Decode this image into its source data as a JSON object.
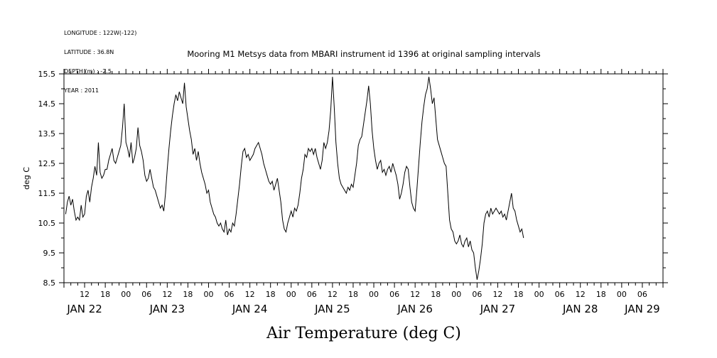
{
  "meta_lines": [
    "LONGITUDE : 122W(-122)",
    "LATITUDE : 36.8N",
    "DEPTH (m) : -2.5",
    "YEAR : 2011"
  ],
  "chart_data": {
    "type": "line",
    "title": "Mooring M1 Metsys data from MBARI instrument id 1396 at original sampling intervals",
    "ylabel": "deg C",
    "xlabel": "Air Temperature (deg C)",
    "ylim": [
      8.5,
      15.5
    ],
    "y_ticks": [
      "15.5",
      "14.5",
      "13.5",
      "12.5",
      "11.5",
      "10.5",
      "9.5",
      "8.5"
    ],
    "xlim_hours": [
      0,
      174
    ],
    "x_hour_ticks": [
      {
        "h": 6,
        "label": "12"
      },
      {
        "h": 12,
        "label": "18"
      },
      {
        "h": 18,
        "label": "00"
      },
      {
        "h": 24,
        "label": "06"
      },
      {
        "h": 30,
        "label": "12"
      },
      {
        "h": 36,
        "label": "18"
      },
      {
        "h": 42,
        "label": "00"
      },
      {
        "h": 48,
        "label": "06"
      },
      {
        "h": 54,
        "label": "12"
      },
      {
        "h": 60,
        "label": "18"
      },
      {
        "h": 66,
        "label": "00"
      },
      {
        "h": 72,
        "label": "06"
      },
      {
        "h": 78,
        "label": "12"
      },
      {
        "h": 84,
        "label": "18"
      },
      {
        "h": 90,
        "label": "00"
      },
      {
        "h": 96,
        "label": "06"
      },
      {
        "h": 102,
        "label": "12"
      },
      {
        "h": 108,
        "label": "18"
      },
      {
        "h": 114,
        "label": "00"
      },
      {
        "h": 120,
        "label": "06"
      },
      {
        "h": 126,
        "label": "12"
      },
      {
        "h": 132,
        "label": "18"
      },
      {
        "h": 138,
        "label": "00"
      },
      {
        "h": 144,
        "label": "06"
      },
      {
        "h": 150,
        "label": "12"
      },
      {
        "h": 156,
        "label": "18"
      },
      {
        "h": 162,
        "label": "00"
      },
      {
        "h": 168,
        "label": "06"
      }
    ],
    "x_day_labels": [
      {
        "h": 6,
        "label": "JAN 22"
      },
      {
        "h": 30,
        "label": "JAN 23"
      },
      {
        "h": 54,
        "label": "JAN 24"
      },
      {
        "h": 78,
        "label": "JAN 25"
      },
      {
        "h": 102,
        "label": "JAN 26"
      },
      {
        "h": 126,
        "label": "JAN 27"
      },
      {
        "h": 150,
        "label": "JAN 28"
      },
      {
        "h": 168,
        "label": "JAN 29"
      }
    ],
    "series": [
      {
        "points": [
          [
            0.5,
            10.8
          ],
          [
            1,
            11.2
          ],
          [
            1.5,
            11.4
          ],
          [
            2,
            11.1
          ],
          [
            2.5,
            11.3
          ],
          [
            3,
            10.9
          ],
          [
            3.5,
            10.6
          ],
          [
            4,
            10.7
          ],
          [
            4.5,
            10.6
          ],
          [
            5,
            11.1
          ],
          [
            5.5,
            10.7
          ],
          [
            6,
            10.8
          ],
          [
            6.5,
            11.4
          ],
          [
            7,
            11.6
          ],
          [
            7.5,
            11.2
          ],
          [
            8,
            11.7
          ],
          [
            8.5,
            12.0
          ],
          [
            9,
            12.4
          ],
          [
            9.5,
            12.1
          ],
          [
            10,
            13.2
          ],
          [
            10.5,
            12.2
          ],
          [
            11,
            12.0
          ],
          [
            11.5,
            12.1
          ],
          [
            12,
            12.3
          ],
          [
            12.5,
            12.3
          ],
          [
            13,
            12.6
          ],
          [
            13.5,
            12.8
          ],
          [
            14,
            13.0
          ],
          [
            14.5,
            12.6
          ],
          [
            15,
            12.5
          ],
          [
            15.5,
            12.7
          ],
          [
            16,
            12.9
          ],
          [
            16.5,
            13.1
          ],
          [
            17,
            13.7
          ],
          [
            17.5,
            14.5
          ],
          [
            18,
            13.2
          ],
          [
            18.5,
            13.0
          ],
          [
            19,
            12.7
          ],
          [
            19.5,
            13.2
          ],
          [
            20,
            12.5
          ],
          [
            20.5,
            12.7
          ],
          [
            21,
            13.0
          ],
          [
            21.5,
            13.7
          ],
          [
            22,
            13.1
          ],
          [
            22.5,
            12.9
          ],
          [
            23,
            12.6
          ],
          [
            23.5,
            12.1
          ],
          [
            24,
            11.9
          ],
          [
            24.5,
            12.0
          ],
          [
            25,
            12.3
          ],
          [
            25.5,
            12.0
          ],
          [
            26,
            11.7
          ],
          [
            26.5,
            11.6
          ],
          [
            27,
            11.4
          ],
          [
            27.5,
            11.2
          ],
          [
            28,
            11.0
          ],
          [
            28.5,
            11.1
          ],
          [
            29,
            10.9
          ],
          [
            29.5,
            11.5
          ],
          [
            30,
            12.3
          ],
          [
            30.5,
            13.0
          ],
          [
            31,
            13.6
          ],
          [
            31.5,
            14.1
          ],
          [
            32,
            14.5
          ],
          [
            32.5,
            14.8
          ],
          [
            33,
            14.6
          ],
          [
            33.5,
            14.9
          ],
          [
            34,
            14.7
          ],
          [
            34.5,
            14.5
          ],
          [
            35,
            15.2
          ],
          [
            35.5,
            14.4
          ],
          [
            36,
            14.0
          ],
          [
            36.5,
            13.6
          ],
          [
            37,
            13.3
          ],
          [
            37.5,
            12.8
          ],
          [
            38,
            13.0
          ],
          [
            38.5,
            12.6
          ],
          [
            39,
            12.9
          ],
          [
            39.5,
            12.5
          ],
          [
            40,
            12.2
          ],
          [
            40.5,
            12.0
          ],
          [
            41,
            11.8
          ],
          [
            41.5,
            11.5
          ],
          [
            42,
            11.6
          ],
          [
            42.5,
            11.2
          ],
          [
            43,
            11.0
          ],
          [
            43.5,
            10.8
          ],
          [
            44,
            10.7
          ],
          [
            44.5,
            10.5
          ],
          [
            45,
            10.4
          ],
          [
            45.5,
            10.5
          ],
          [
            46,
            10.3
          ],
          [
            46.5,
            10.2
          ],
          [
            47,
            10.6
          ],
          [
            47.5,
            10.1
          ],
          [
            48,
            10.3
          ],
          [
            48.5,
            10.2
          ],
          [
            49,
            10.5
          ],
          [
            49.5,
            10.4
          ],
          [
            50,
            10.8
          ],
          [
            50.5,
            11.3
          ],
          [
            51,
            11.8
          ],
          [
            51.5,
            12.4
          ],
          [
            52,
            12.9
          ],
          [
            52.5,
            13.0
          ],
          [
            53,
            12.7
          ],
          [
            53.5,
            12.8
          ],
          [
            54,
            12.6
          ],
          [
            54.5,
            12.7
          ],
          [
            55,
            12.8
          ],
          [
            55.5,
            13.0
          ],
          [
            56,
            13.1
          ],
          [
            56.5,
            13.2
          ],
          [
            57,
            13.0
          ],
          [
            57.5,
            12.8
          ],
          [
            58,
            12.5
          ],
          [
            58.5,
            12.3
          ],
          [
            59,
            12.1
          ],
          [
            59.5,
            11.9
          ],
          [
            60,
            11.8
          ],
          [
            60.5,
            11.9
          ],
          [
            61,
            11.6
          ],
          [
            61.5,
            11.8
          ],
          [
            62,
            12.0
          ],
          [
            62.5,
            11.6
          ],
          [
            63,
            11.2
          ],
          [
            63.5,
            10.6
          ],
          [
            64,
            10.3
          ],
          [
            64.5,
            10.2
          ],
          [
            65,
            10.5
          ],
          [
            65.5,
            10.7
          ],
          [
            66,
            10.9
          ],
          [
            66.5,
            10.7
          ],
          [
            67,
            11.0
          ],
          [
            67.5,
            10.9
          ],
          [
            68,
            11.1
          ],
          [
            68.5,
            11.5
          ],
          [
            69,
            12.0
          ],
          [
            69.5,
            12.3
          ],
          [
            70,
            12.8
          ],
          [
            70.5,
            12.7
          ],
          [
            71,
            13.0
          ],
          [
            71.5,
            12.9
          ],
          [
            72,
            13.0
          ],
          [
            72.5,
            12.8
          ],
          [
            73,
            13.0
          ],
          [
            73.5,
            12.7
          ],
          [
            74,
            12.5
          ],
          [
            74.5,
            12.3
          ],
          [
            75,
            12.6
          ],
          [
            75.5,
            13.2
          ],
          [
            76,
            13.0
          ],
          [
            76.5,
            13.2
          ],
          [
            77,
            13.6
          ],
          [
            77.5,
            14.3
          ],
          [
            78,
            15.4
          ],
          [
            78.5,
            14.4
          ],
          [
            79,
            13.2
          ],
          [
            79.5,
            12.5
          ],
          [
            80,
            12.0
          ],
          [
            80.5,
            11.8
          ],
          [
            81,
            11.7
          ],
          [
            81.5,
            11.6
          ],
          [
            82,
            11.5
          ],
          [
            82.5,
            11.7
          ],
          [
            83,
            11.6
          ],
          [
            83.5,
            11.8
          ],
          [
            84,
            11.7
          ],
          [
            84.5,
            12.1
          ],
          [
            85,
            12.5
          ],
          [
            85.5,
            13.1
          ],
          [
            86,
            13.3
          ],
          [
            86.5,
            13.4
          ],
          [
            87,
            13.8
          ],
          [
            87.5,
            14.2
          ],
          [
            88,
            14.6
          ],
          [
            88.5,
            15.1
          ],
          [
            89,
            14.5
          ],
          [
            89.5,
            13.6
          ],
          [
            90,
            13.0
          ],
          [
            90.5,
            12.6
          ],
          [
            91,
            12.3
          ],
          [
            91.5,
            12.5
          ],
          [
            92,
            12.6
          ],
          [
            92.5,
            12.2
          ],
          [
            93,
            12.3
          ],
          [
            93.5,
            12.1
          ],
          [
            94,
            12.3
          ],
          [
            94.5,
            12.4
          ],
          [
            95,
            12.2
          ],
          [
            95.5,
            12.5
          ],
          [
            96,
            12.3
          ],
          [
            96.5,
            12.1
          ],
          [
            97,
            11.8
          ],
          [
            97.5,
            11.3
          ],
          [
            98,
            11.5
          ],
          [
            98.5,
            11.8
          ],
          [
            99,
            12.2
          ],
          [
            99.5,
            12.4
          ],
          [
            100,
            12.3
          ],
          [
            100.5,
            11.7
          ],
          [
            101,
            11.2
          ],
          [
            101.5,
            11.0
          ],
          [
            102,
            10.9
          ],
          [
            102.5,
            11.6
          ],
          [
            103,
            12.4
          ],
          [
            103.5,
            13.2
          ],
          [
            104,
            13.9
          ],
          [
            104.5,
            14.4
          ],
          [
            105,
            14.8
          ],
          [
            105.5,
            15.0
          ],
          [
            106,
            15.4
          ],
          [
            106.5,
            15.0
          ],
          [
            107,
            14.5
          ],
          [
            107.5,
            14.7
          ],
          [
            108,
            14.0
          ],
          [
            108.5,
            13.3
          ],
          [
            109,
            13.1
          ],
          [
            109.5,
            12.9
          ],
          [
            110,
            12.7
          ],
          [
            110.5,
            12.5
          ],
          [
            111,
            12.4
          ],
          [
            111.5,
            11.5
          ],
          [
            112,
            10.6
          ],
          [
            112.5,
            10.3
          ],
          [
            113,
            10.2
          ],
          [
            113.5,
            9.9
          ],
          [
            114,
            9.8
          ],
          [
            114.5,
            9.9
          ],
          [
            115,
            10.1
          ],
          [
            115.5,
            9.8
          ],
          [
            116,
            9.7
          ],
          [
            116.5,
            9.9
          ],
          [
            117,
            10.0
          ],
          [
            117.5,
            9.7
          ],
          [
            118,
            9.9
          ],
          [
            118.5,
            9.6
          ],
          [
            119,
            9.5
          ],
          [
            119.5,
            9.0
          ],
          [
            120,
            8.6
          ],
          [
            120.5,
            8.9
          ],
          [
            121,
            9.3
          ],
          [
            121.5,
            9.8
          ],
          [
            122,
            10.5
          ],
          [
            122.5,
            10.8
          ],
          [
            123,
            10.9
          ],
          [
            123.5,
            10.7
          ],
          [
            124,
            11.0
          ],
          [
            124.5,
            10.8
          ],
          [
            125,
            10.9
          ],
          [
            125.5,
            11.0
          ],
          [
            126,
            10.9
          ],
          [
            126.5,
            10.8
          ],
          [
            127,
            10.9
          ],
          [
            127.5,
            10.7
          ],
          [
            128,
            10.8
          ],
          [
            128.5,
            10.6
          ],
          [
            129,
            10.9
          ],
          [
            129.5,
            11.2
          ],
          [
            130,
            11.5
          ],
          [
            130.5,
            11.0
          ],
          [
            131,
            10.9
          ],
          [
            131.5,
            10.6
          ],
          [
            132,
            10.4
          ],
          [
            132.5,
            10.2
          ],
          [
            133,
            10.3
          ],
          [
            133.5,
            10.0
          ]
        ]
      }
    ]
  }
}
